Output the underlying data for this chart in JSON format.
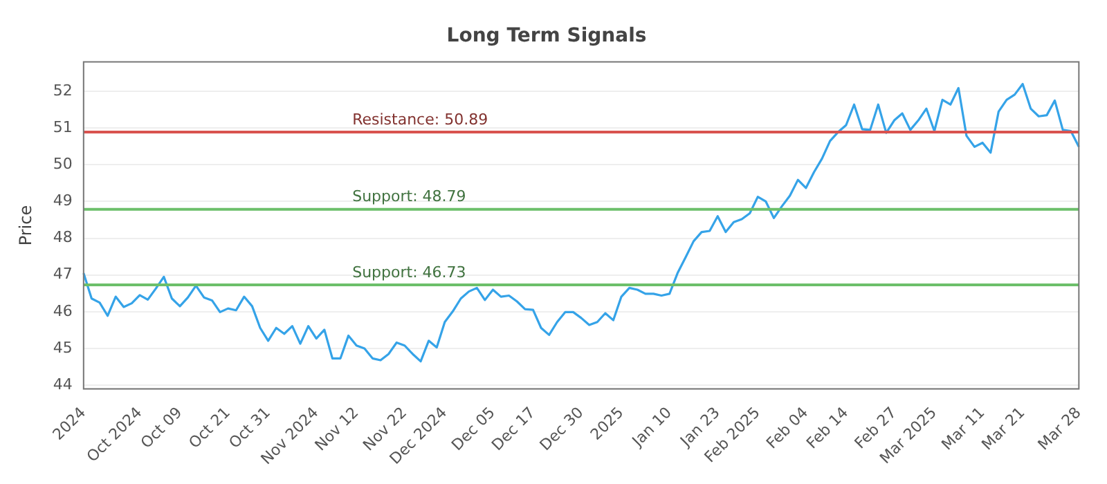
{
  "chart_data": {
    "type": "line",
    "title": "Long Term Signals",
    "ylabel": "Price",
    "categories": [
      "2024",
      null,
      null,
      null,
      null,
      null,
      null,
      "Oct 2024",
      null,
      null,
      null,
      null,
      "Oct 09",
      null,
      null,
      null,
      null,
      null,
      "Oct 21",
      null,
      null,
      null,
      null,
      "Oct 31",
      null,
      null,
      null,
      null,
      null,
      "Nov 2024",
      null,
      null,
      null,
      null,
      "Nov 12",
      null,
      null,
      null,
      null,
      null,
      "Nov 22",
      null,
      null,
      null,
      null,
      "Dec 2024",
      null,
      null,
      null,
      null,
      null,
      "Dec 05",
      null,
      null,
      null,
      null,
      "Dec 17",
      null,
      null,
      null,
      null,
      null,
      "Dec 30",
      null,
      null,
      null,
      null,
      "2025",
      null,
      null,
      null,
      null,
      null,
      "Jan 10",
      null,
      null,
      null,
      null,
      null,
      "Jan 23",
      null,
      null,
      null,
      null,
      "Feb 2025",
      null,
      null,
      null,
      null,
      null,
      "Feb 04",
      null,
      null,
      null,
      null,
      "Feb 14",
      null,
      null,
      null,
      null,
      null,
      "Feb 27",
      null,
      null,
      null,
      null,
      "Mar 2025",
      null,
      null,
      null,
      null,
      null,
      "Mar 11",
      null,
      null,
      null,
      null,
      "Mar 21",
      null,
      null,
      null,
      null,
      null,
      null,
      "Mar 28"
    ],
    "series": [
      {
        "color": "#35a3e8",
        "values": [
          47.05,
          46.36,
          46.25,
          45.89,
          46.41,
          46.13,
          46.23,
          46.45,
          46.33,
          46.63,
          46.95,
          46.36,
          46.15,
          46.39,
          46.71,
          46.39,
          46.31,
          45.99,
          46.09,
          46.04,
          46.41,
          46.15,
          45.56,
          45.21,
          45.56,
          45.4,
          45.61,
          45.13,
          45.61,
          45.27,
          45.51,
          44.73,
          44.73,
          45.35,
          45.08,
          45.0,
          44.73,
          44.68,
          44.85,
          45.16,
          45.08,
          44.85,
          44.65,
          45.21,
          45.03,
          45.72,
          46.01,
          46.36,
          46.55,
          46.65,
          46.32,
          46.6,
          46.41,
          46.44,
          46.28,
          46.07,
          46.05,
          45.56,
          45.37,
          45.72,
          45.99,
          45.99,
          45.83,
          45.64,
          45.72,
          45.96,
          45.77,
          46.41,
          46.65,
          46.6,
          46.49,
          46.49,
          46.44,
          46.49,
          47.05,
          47.48,
          47.92,
          48.17,
          48.2,
          48.6,
          48.17,
          48.44,
          48.52,
          48.68,
          49.13,
          49.0,
          48.55,
          48.87,
          49.16,
          49.59,
          49.37,
          49.8,
          50.17,
          50.65,
          50.89,
          51.08,
          51.64,
          50.97,
          50.95,
          51.64,
          50.87,
          51.21,
          51.4,
          50.95,
          51.21,
          51.53,
          50.92,
          51.77,
          51.64,
          52.09,
          50.79,
          50.49,
          50.6,
          50.33,
          51.45,
          51.77,
          51.91,
          52.2,
          51.53,
          51.32,
          51.35,
          51.75,
          50.95,
          50.92,
          50.49
        ]
      }
    ],
    "ylim": [
      43.9,
      52.8
    ],
    "yticks": [
      44,
      45,
      46,
      47,
      48,
      49,
      50,
      51,
      52
    ],
    "grid": "y",
    "legend": false,
    "marker": "none",
    "line_style": "solid",
    "ref_lines": [
      {
        "axis": "y",
        "value": 50.89,
        "label": "Resistance: 50.89",
        "color": "#d9534f"
      },
      {
        "axis": "y",
        "value": 48.79,
        "label": "Support: 48.79",
        "color": "#6cbf6a"
      },
      {
        "axis": "y",
        "value": 46.73,
        "label": "Support: 46.73",
        "color": "#6cbf6a"
      }
    ]
  }
}
